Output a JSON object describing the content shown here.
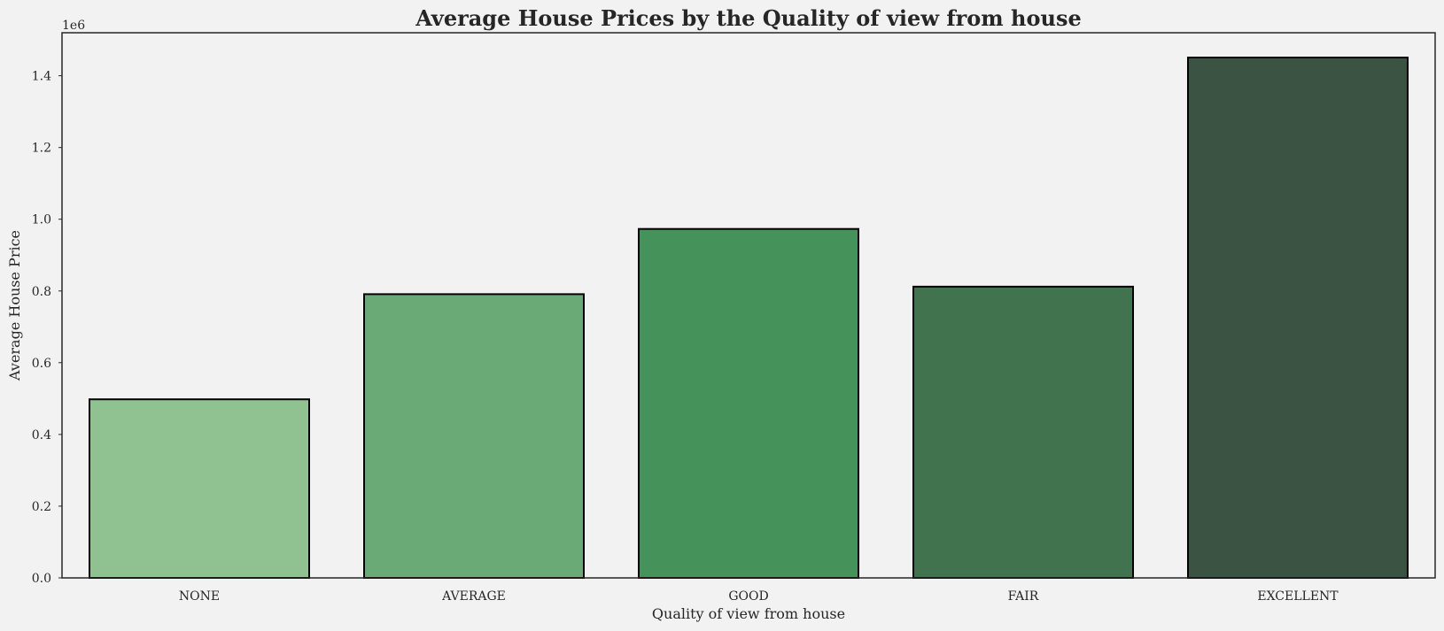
{
  "chart_data": {
    "type": "bar",
    "title": "Average House Prices by the Quality of view from house",
    "xlabel": "Quality of view from house",
    "ylabel": "Average House Price",
    "categories": [
      "NONE",
      "AVERAGE",
      "GOOD",
      "FAIR",
      "EXCELLENT"
    ],
    "values": [
      498000,
      791000,
      973000,
      812000,
      1451000
    ],
    "colors": [
      "#8fc290",
      "#6aaa77",
      "#45935b",
      "#40734e",
      "#3a5342"
    ],
    "ylim": [
      0,
      1520000
    ],
    "yticks": [
      "0.0",
      "0.2",
      "0.4",
      "0.6",
      "0.8",
      "1.0",
      "1.2",
      "1.4"
    ],
    "y_offset_label": "1e6",
    "grid": false,
    "legend": "none"
  }
}
